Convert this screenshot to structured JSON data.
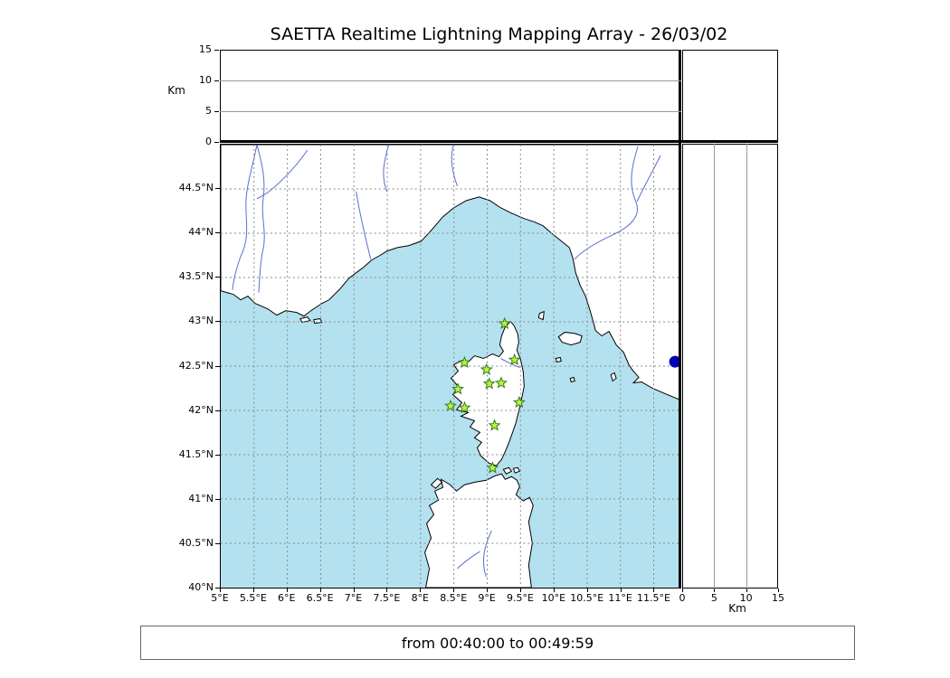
{
  "header": {
    "title": "SAETTA Realtime Lightning Mapping Array - 26/03/02"
  },
  "footer": {
    "text": "from 00:40:00 to 00:49:59"
  },
  "top_panel": {
    "ylabel": "Km"
  },
  "right_panel": {
    "xlabel": "Km"
  },
  "colors": {
    "sea": "#b4e1ef",
    "land": "#ffffff",
    "coastline": "#000000",
    "river": "#5b6ed0",
    "grid": "#8a8a8a",
    "station_fill": "#c0f23c",
    "station_edge": "#2e7d1e",
    "event": "#0000bb"
  },
  "chart_data": {
    "type": "scatter",
    "title": "SAETTA Realtime Lightning Mapping Array - 26/03/02",
    "time_range": "from 00:40:00 to 00:49:59",
    "description": "Realtime lightning mapping array composite plot: top panel = altitude (0-15 km) vs longitude, main panel = map of Corsica / NW Mediterranean with LMA station markers (green stars), right panel = altitude (0-15 km) vs latitude. One blue event dot near the map's east edge; altitude panels are empty for this interval.",
    "map_panel": {
      "xlim": [
        5,
        11.9
      ],
      "ylim": [
        40,
        45
      ],
      "grid_dashed": true,
      "lon_ticks": [
        {
          "v": 5,
          "label": "5°E"
        },
        {
          "v": 5.5,
          "label": "5.5°E"
        },
        {
          "v": 6,
          "label": "6°E"
        },
        {
          "v": 6.5,
          "label": "6.5°E"
        },
        {
          "v": 7,
          "label": "7°E"
        },
        {
          "v": 7.5,
          "label": "7.5°E"
        },
        {
          "v": 8,
          "label": "8°E"
        },
        {
          "v": 8.5,
          "label": "8.5°E"
        },
        {
          "v": 9,
          "label": "9°E"
        },
        {
          "v": 9.5,
          "label": "9.5°E"
        },
        {
          "v": 10,
          "label": "10°E"
        },
        {
          "v": 10.5,
          "label": "10.5°E"
        },
        {
          "v": 11,
          "label": "11°E"
        },
        {
          "v": 11.5,
          "label": "11.5°E"
        }
      ],
      "lat_ticks": [
        {
          "v": 44.5,
          "label": "44.5°N"
        },
        {
          "v": 44,
          "label": "44°N"
        },
        {
          "v": 43.5,
          "label": "43.5°N"
        },
        {
          "v": 43,
          "label": "43°N"
        },
        {
          "v": 42.5,
          "label": "42.5°N"
        },
        {
          "v": 42,
          "label": "42°N"
        },
        {
          "v": 41.5,
          "label": "41.5°N"
        },
        {
          "v": 41,
          "label": "41°N"
        },
        {
          "v": 40.5,
          "label": "40.5°N"
        },
        {
          "v": 40,
          "label": "40°N"
        }
      ],
      "stations": [
        {
          "lon": 9.26,
          "lat": 42.98
        },
        {
          "lon": 8.66,
          "lat": 42.54
        },
        {
          "lon": 8.99,
          "lat": 42.46
        },
        {
          "lon": 9.41,
          "lat": 42.57
        },
        {
          "lon": 9.21,
          "lat": 42.31
        },
        {
          "lon": 9.03,
          "lat": 42.3
        },
        {
          "lon": 8.56,
          "lat": 42.24
        },
        {
          "lon": 8.45,
          "lat": 42.05
        },
        {
          "lon": 8.66,
          "lat": 42.03
        },
        {
          "lon": 9.48,
          "lat": 42.09
        },
        {
          "lon": 9.11,
          "lat": 41.83
        },
        {
          "lon": 9.08,
          "lat": 41.35
        }
      ],
      "events": [
        {
          "lon": 11.82,
          "lat": 42.55
        }
      ]
    },
    "altitude_panel_top": {
      "axis": "altitude (km) vs longitude",
      "ylim": [
        0,
        15
      ],
      "ylabel": "Km",
      "yticks": [
        {
          "v": 0,
          "label": "0"
        },
        {
          "v": 5,
          "label": "5"
        },
        {
          "v": 10,
          "label": "10"
        },
        {
          "v": 15,
          "label": "15"
        }
      ],
      "gridlines_km": [
        5,
        10
      ],
      "points": []
    },
    "altitude_panel_right": {
      "axis": "altitude (km) vs latitude",
      "xlim": [
        0,
        15
      ],
      "xlabel": "Km",
      "xticks": [
        {
          "v": 0,
          "label": "0"
        },
        {
          "v": 5,
          "label": "5"
        },
        {
          "v": 10,
          "label": "10"
        },
        {
          "v": 15,
          "label": "15"
        }
      ],
      "gridlines_km": [
        5,
        10
      ],
      "points": []
    }
  }
}
